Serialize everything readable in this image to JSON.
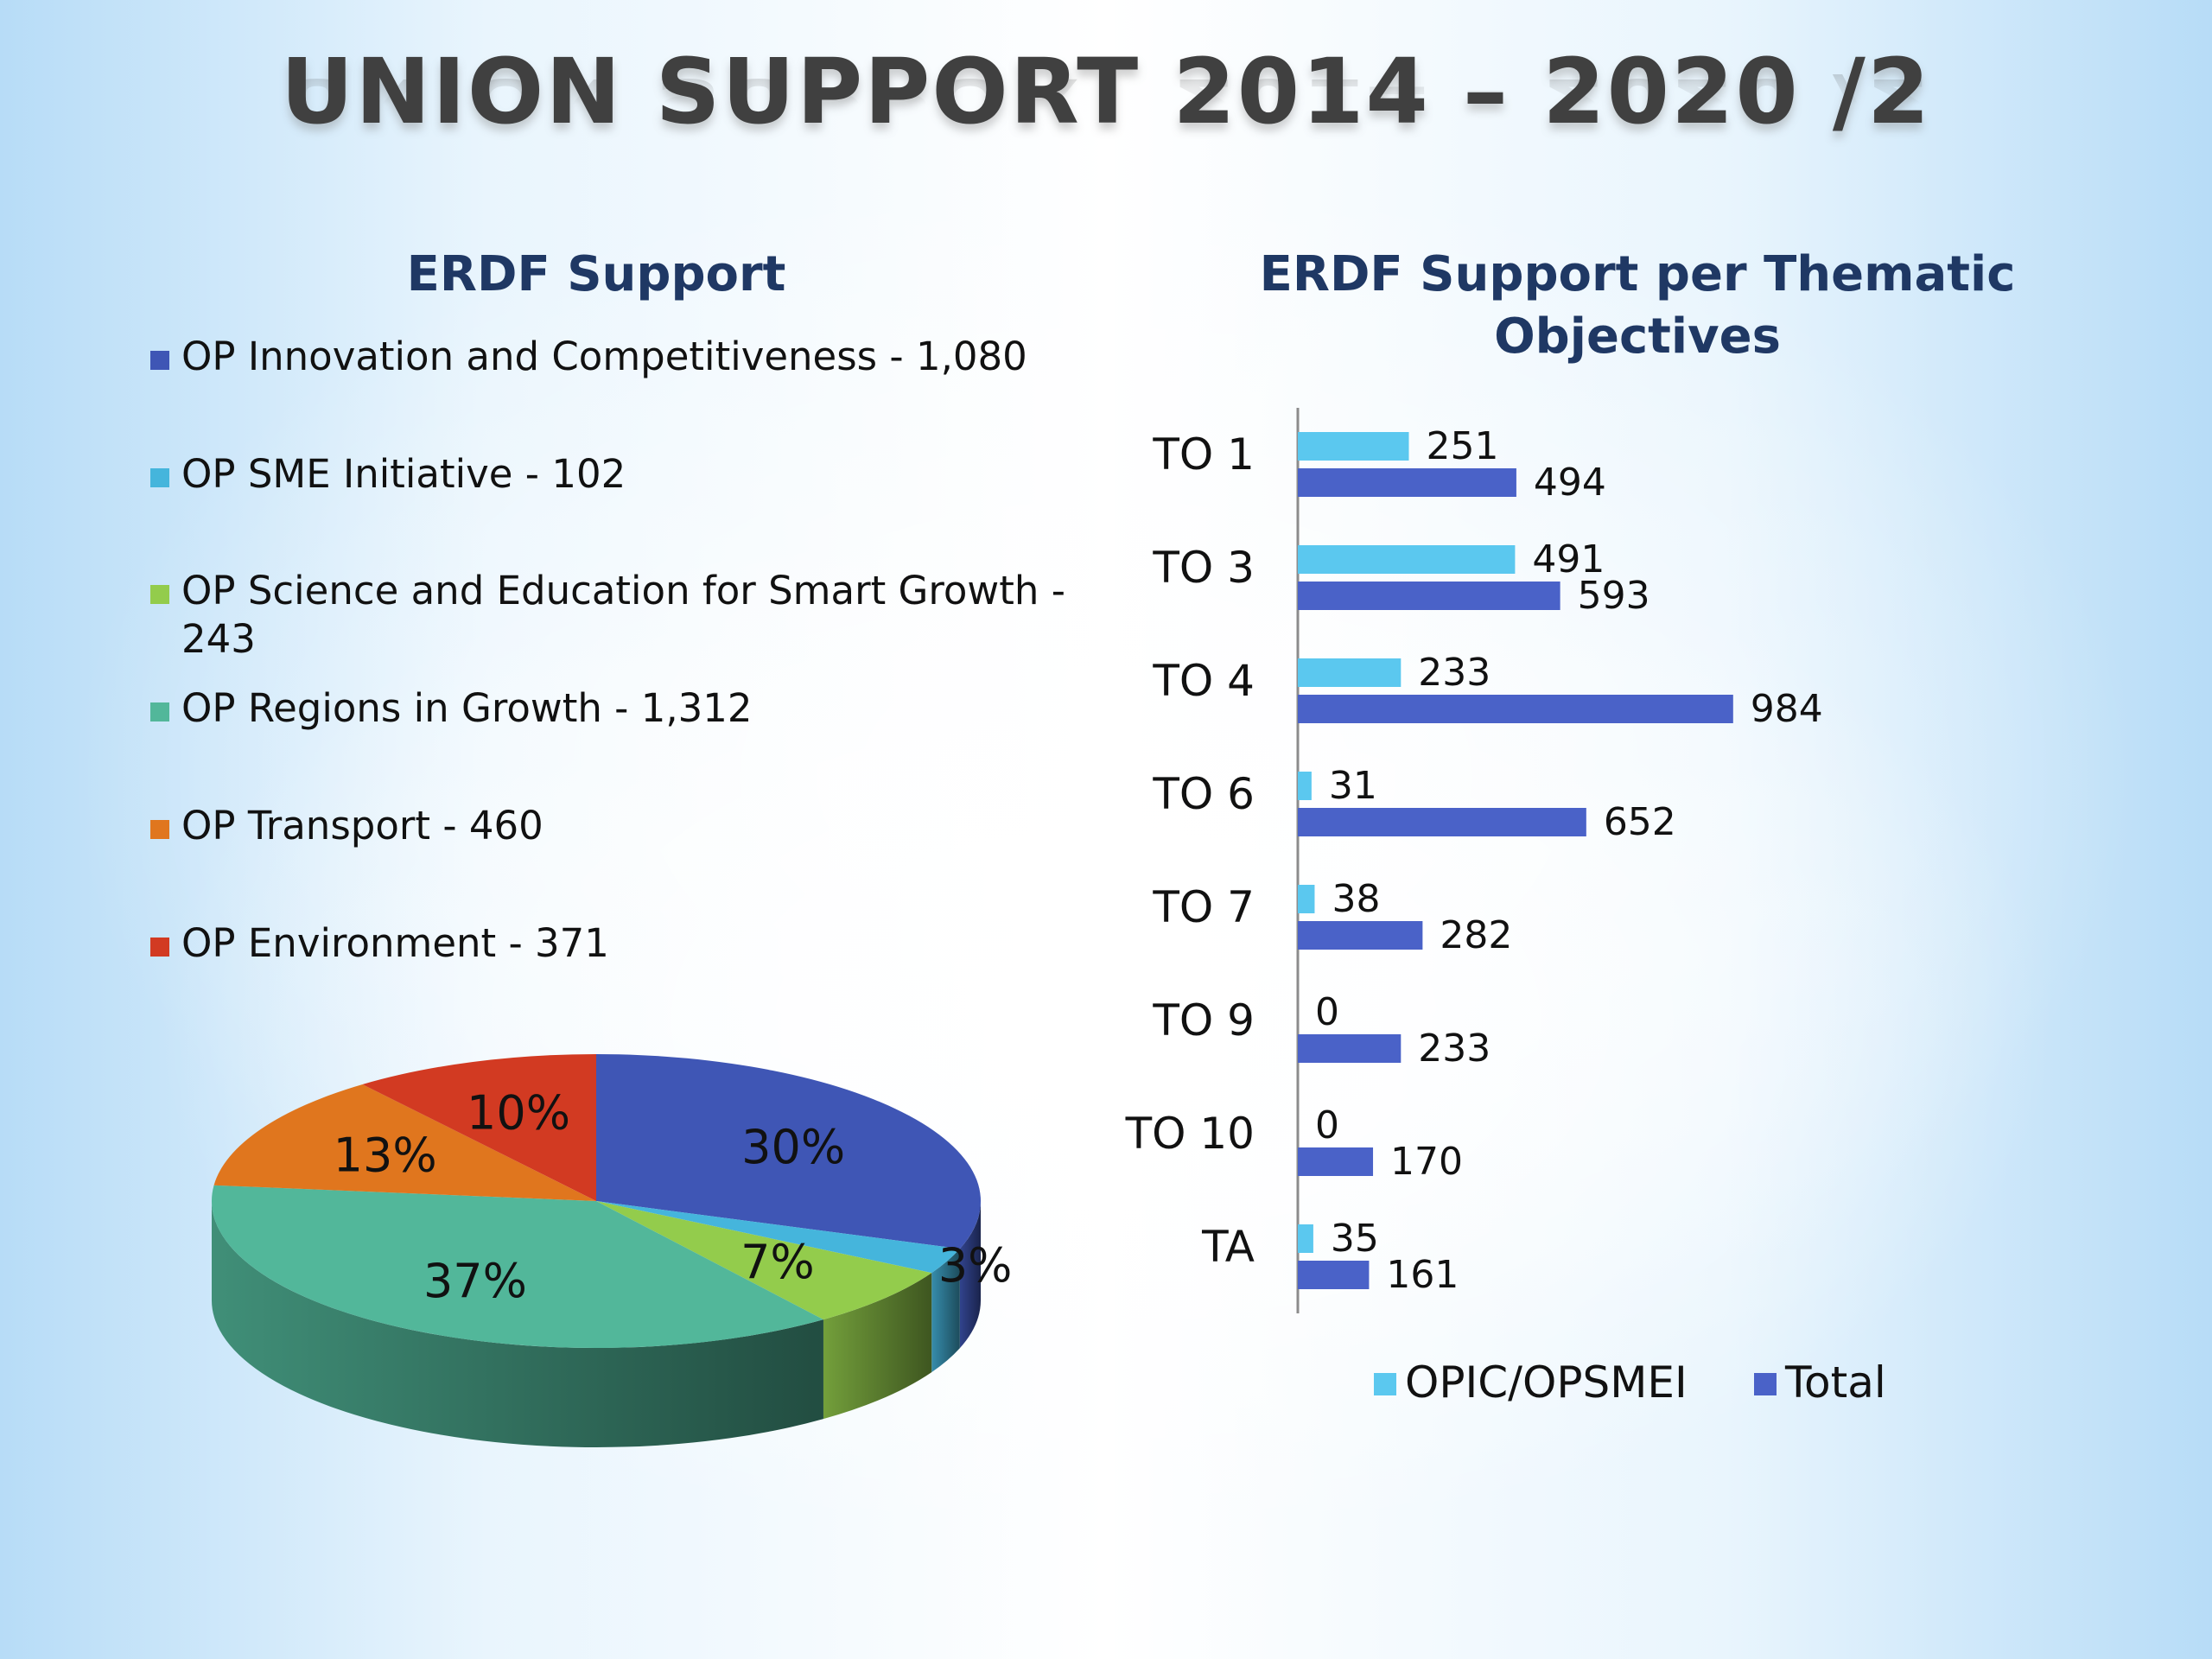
{
  "title": "UNION SUPPORT 2014 – 2020 /2",
  "colors": {
    "background": "#ffffff",
    "title": "#404040",
    "heading": "#1f3864",
    "bar_light": "#5bc8ef",
    "bar_dark": "#4a62c8"
  },
  "chart_data": [
    {
      "type": "pie",
      "title": "ERDF Support",
      "legend_placement": "top",
      "series": [
        {
          "legend_label": "OP Innovation and Competitiveness - 1,080",
          "value": 1080,
          "percent_label": "30%",
          "color": "#3f56b5"
        },
        {
          "legend_label": "OP SME Initiative - 102",
          "value": 102,
          "percent_label": "3%",
          "color": "#45b5dc"
        },
        {
          "legend_label": "OP Science and Education for Smart Growth - 243",
          "value": 243,
          "percent_label": "7%",
          "color": "#93cc4c"
        },
        {
          "legend_label": "OP Regions in Growth - 1,312",
          "value": 1312,
          "percent_label": "37%",
          "color": "#52b79a"
        },
        {
          "legend_label": "OP Transport - 460",
          "value": 460,
          "percent_label": "13%",
          "color": "#e0761e"
        },
        {
          "legend_label": "OP Environment - 371",
          "value": 371,
          "percent_label": "10%",
          "color": "#d23a22"
        }
      ]
    },
    {
      "type": "bar",
      "orientation": "horizontal",
      "title": "ERDF Support per Thematic Objectives",
      "legend_placement": "bottom",
      "categories": [
        "TO 1",
        "TO 3",
        "TO 4",
        "TO 6",
        "TO 7",
        "TO 9",
        "TO 10",
        "TA"
      ],
      "series": [
        {
          "name": "OPIC/OPSMEI",
          "values": [
            251,
            491,
            233,
            31,
            38,
            0,
            0,
            35
          ],
          "color": "#5bc8ef"
        },
        {
          "name": "Total",
          "values": [
            494,
            593,
            984,
            652,
            282,
            233,
            170,
            161
          ],
          "color": "#4a62c8"
        }
      ],
      "xlim": [
        0,
        1250
      ],
      "grid": false
    }
  ]
}
